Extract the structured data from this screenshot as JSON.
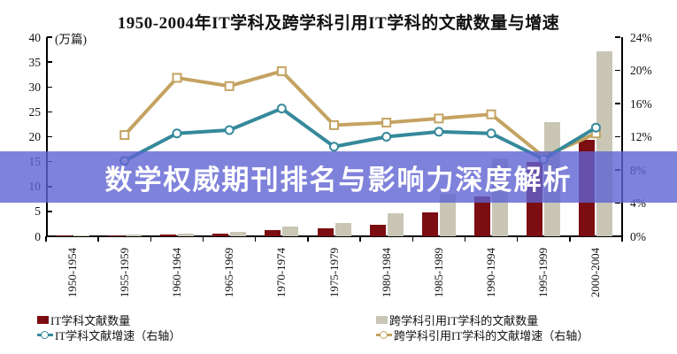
{
  "title": "1950-2004年IT学科及跨学科引用IT学科的文献数量与增速",
  "overlay_banner": {
    "text": "数学权威期刊排名与影响力深度解析",
    "background_color": "#5F63D2",
    "opacity": 0.8,
    "text_color": "#FFFFFF"
  },
  "chart_data": {
    "type": "bar+line combo",
    "categories": [
      "1950-1954",
      "1955-1959",
      "1960-1964",
      "1965-1969",
      "1970-1974",
      "1975-1979",
      "1980-1984",
      "1985-1989",
      "1990-1994",
      "1995-1999",
      "2000-2004"
    ],
    "left_axis": {
      "unit_label": "(万篇)",
      "min": 0,
      "max": 40,
      "ticks": [
        0,
        5,
        10,
        15,
        20,
        25,
        30,
        35,
        40
      ]
    },
    "right_axis": {
      "min": 0,
      "max": 24,
      "ticks": [
        "0%",
        "4%",
        "8%",
        "12%",
        "16%",
        "20%",
        "24%"
      ],
      "tick_values": [
        0,
        4,
        8,
        12,
        16,
        20,
        24
      ]
    },
    "series": [
      {
        "id": "it-count",
        "name": "IT学科文献数量",
        "type": "bar",
        "axis": "left",
        "color": "#7C0D11",
        "values": [
          0.05,
          0.15,
          0.3,
          0.55,
          1.2,
          1.6,
          2.4,
          4.8,
          8.0,
          15.0,
          19.4
        ]
      },
      {
        "id": "cross-count",
        "name": "跨学科引用IT学科的文献数量",
        "type": "bar",
        "axis": "left",
        "color": "#C9C6B6",
        "values": [
          0.1,
          0.3,
          0.5,
          0.9,
          1.9,
          2.6,
          4.6,
          8.5,
          15.6,
          22.9,
          37.2
        ]
      },
      {
        "id": "cross-growth",
        "name": "跨学科引用IT学科的文献增速（右轴）",
        "type": "line",
        "axis": "right",
        "color": "#C4A361",
        "marker": "square",
        "values": [
          null,
          12.2,
          19.1,
          18.1,
          19.9,
          13.4,
          13.7,
          14.2,
          14.7,
          9.6,
          12.4
        ]
      },
      {
        "id": "it-growth",
        "name": "IT学科文献增速（右轴）",
        "type": "line",
        "axis": "right",
        "color": "#35899B",
        "marker": "circle",
        "values": [
          null,
          9.1,
          12.4,
          12.8,
          15.4,
          10.8,
          12.0,
          12.6,
          12.4,
          9.3,
          13.1
        ]
      }
    ],
    "legend_position": "bottom",
    "grid": false
  },
  "legend": {
    "item_it_count": "IT学科文献数量",
    "item_cross_count": "跨学科引用IT学科的文献数量",
    "item_it_growth": "IT学科文献增速（右轴）",
    "item_cross_growth": "跨学科引用IT学科的文献增速（右轴）"
  }
}
